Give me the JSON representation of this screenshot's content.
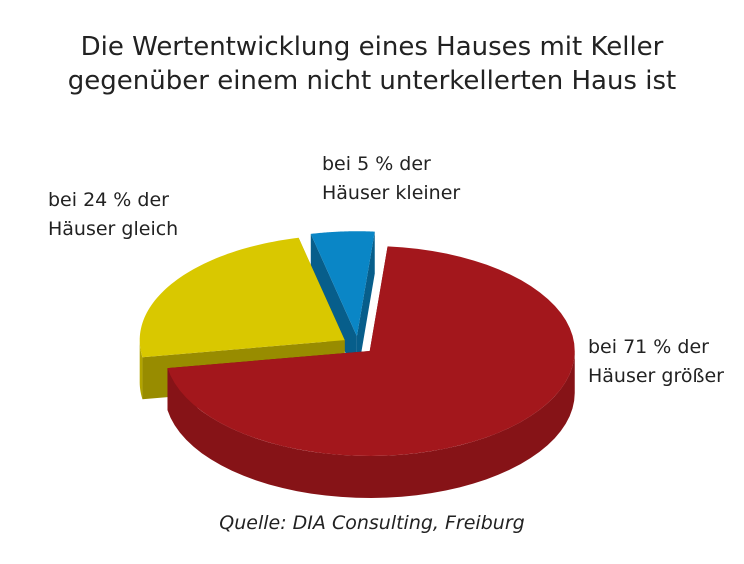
{
  "chart_data": {
    "type": "pie3d",
    "title": "Die Wertentwicklung eines Hauses mit Keller gegenüber einem nicht unterkellerten Haus ist",
    "values": [
      71,
      24,
      5
    ],
    "value_labels": [
      "bei 71 % der Häuser größer",
      "bei 24 % der Häuser gleich",
      "bei 5 % der Häuser kleiner"
    ],
    "colors": [
      "#a3171c",
      "#d9c800",
      "#0a86c6"
    ],
    "source": "Quelle: DIA Consulting, Freiburg"
  }
}
